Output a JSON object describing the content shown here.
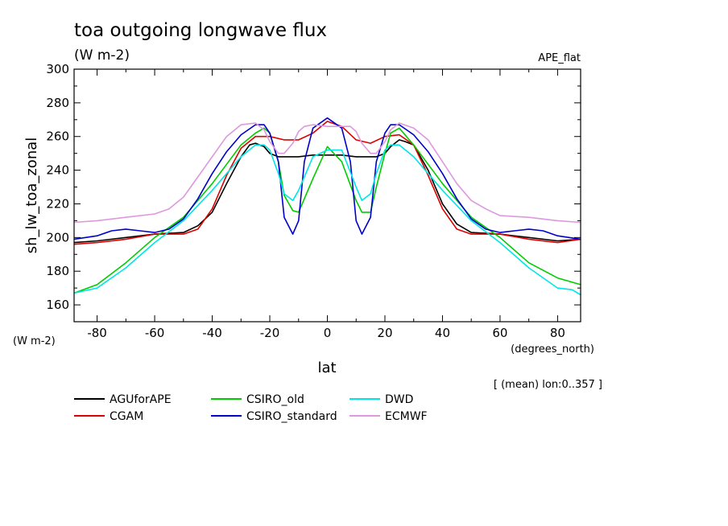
{
  "chart_data": {
    "type": "line",
    "title": "toa outgoing longwave flux",
    "subtitle": "(W m-2)",
    "experiment": "APE_flat",
    "ylabel": "sh_lw_toa_zonal",
    "yunits": "(W m-2)",
    "xlabel": "lat",
    "xunits": "(degrees_north)",
    "footnote": "[ (mean) lon:0..357 ]",
    "xlim": [
      -88,
      88
    ],
    "ylim": [
      150,
      300
    ],
    "xticks": [
      -80,
      -60,
      -40,
      -20,
      0,
      20,
      40,
      60,
      80
    ],
    "yticks": [
      160,
      180,
      200,
      220,
      240,
      260,
      280,
      300
    ],
    "grid": false,
    "legend_position": "bottom",
    "series": [
      {
        "name": "AGUforAPE",
        "color": "#000000",
        "x": [
          -88,
          -80,
          -70,
          -60,
          -50,
          -45,
          -40,
          -35,
          -30,
          -27,
          -25,
          -22,
          -20,
          -17,
          -15,
          -10,
          -5,
          0,
          5,
          10,
          15,
          17,
          20,
          22,
          25,
          27,
          30,
          35,
          40,
          45,
          50,
          60,
          70,
          80,
          88
        ],
        "y": [
          197,
          198,
          200,
          202,
          203,
          207,
          215,
          232,
          248,
          255,
          256,
          254,
          250,
          248,
          248,
          248,
          249,
          249,
          249,
          248,
          248,
          248,
          250,
          254,
          258,
          257,
          255,
          240,
          220,
          208,
          203,
          202,
          200,
          198,
          199
        ]
      },
      {
        "name": "CGAM",
        "color": "#dd0000",
        "x": [
          -88,
          -80,
          -70,
          -60,
          -50,
          -45,
          -40,
          -35,
          -30,
          -25,
          -20,
          -15,
          -10,
          -5,
          0,
          5,
          10,
          15,
          20,
          25,
          30,
          35,
          40,
          45,
          50,
          60,
          70,
          80,
          88
        ],
        "y": [
          196,
          197,
          199,
          202,
          202,
          205,
          217,
          237,
          253,
          260,
          260,
          258,
          258,
          262,
          269,
          266,
          258,
          256,
          260,
          261,
          255,
          237,
          217,
          205,
          202,
          202,
          199,
          197,
          199
        ]
      },
      {
        "name": "CSIRO_old",
        "color": "#00cc00",
        "x": [
          -88,
          -80,
          -70,
          -60,
          -50,
          -40,
          -30,
          -25,
          -22,
          -20,
          -17,
          -15,
          -12,
          -10,
          -5,
          0,
          5,
          10,
          12,
          15,
          17,
          20,
          22,
          25,
          30,
          40,
          50,
          60,
          70,
          80,
          88
        ],
        "y": [
          167,
          172,
          185,
          200,
          212,
          232,
          255,
          262,
          265,
          262,
          245,
          225,
          216,
          215,
          235,
          254,
          245,
          222,
          215,
          215,
          230,
          250,
          262,
          265,
          255,
          232,
          212,
          200,
          185,
          176,
          172
        ]
      },
      {
        "name": "CSIRO_standard",
        "color": "#0000cc",
        "x": [
          -88,
          -80,
          -75,
          -70,
          -65,
          -60,
          -55,
          -50,
          -45,
          -40,
          -35,
          -30,
          -25,
          -22,
          -20,
          -17,
          -15,
          -12,
          -10,
          -8,
          -5,
          0,
          5,
          8,
          10,
          12,
          15,
          17,
          20,
          22,
          25,
          30,
          35,
          40,
          45,
          50,
          55,
          60,
          65,
          70,
          75,
          80,
          88
        ],
        "y": [
          199,
          201,
          204,
          205,
          204,
          203,
          205,
          211,
          223,
          238,
          251,
          261,
          267,
          267,
          262,
          245,
          212,
          202,
          210,
          245,
          265,
          271,
          265,
          245,
          210,
          202,
          212,
          245,
          262,
          267,
          267,
          261,
          251,
          238,
          223,
          211,
          205,
          203,
          204,
          205,
          204,
          201,
          199
        ]
      },
      {
        "name": "DWD",
        "color": "#00e5e5",
        "x": [
          -88,
          -80,
          -70,
          -60,
          -50,
          -40,
          -30,
          -25,
          -22,
          -20,
          -17,
          -15,
          -12,
          -10,
          -5,
          0,
          5,
          10,
          12,
          15,
          17,
          20,
          22,
          25,
          30,
          40,
          50,
          60,
          70,
          80,
          85,
          88
        ],
        "y": [
          167,
          170,
          182,
          197,
          210,
          228,
          248,
          255,
          255,
          252,
          238,
          226,
          222,
          228,
          248,
          252,
          252,
          230,
          222,
          226,
          238,
          252,
          255,
          255,
          248,
          228,
          210,
          197,
          182,
          170,
          169,
          166
        ]
      },
      {
        "name": "ECMWF",
        "color": "#dd99dd",
        "x": [
          -88,
          -80,
          -70,
          -60,
          -55,
          -50,
          -45,
          -40,
          -35,
          -30,
          -25,
          -22,
          -20,
          -17,
          -15,
          -12,
          -10,
          -8,
          -5,
          0,
          5,
          8,
          10,
          12,
          15,
          17,
          20,
          22,
          25,
          30,
          35,
          40,
          45,
          50,
          55,
          60,
          70,
          80,
          88
        ],
        "y": [
          209,
          210,
          212,
          214,
          217,
          224,
          236,
          248,
          260,
          267,
          268,
          264,
          257,
          250,
          250,
          256,
          263,
          266,
          267,
          266,
          266,
          266,
          263,
          256,
          250,
          250,
          257,
          264,
          268,
          265,
          258,
          245,
          232,
          222,
          217,
          213,
          212,
          210,
          209
        ]
      }
    ]
  }
}
